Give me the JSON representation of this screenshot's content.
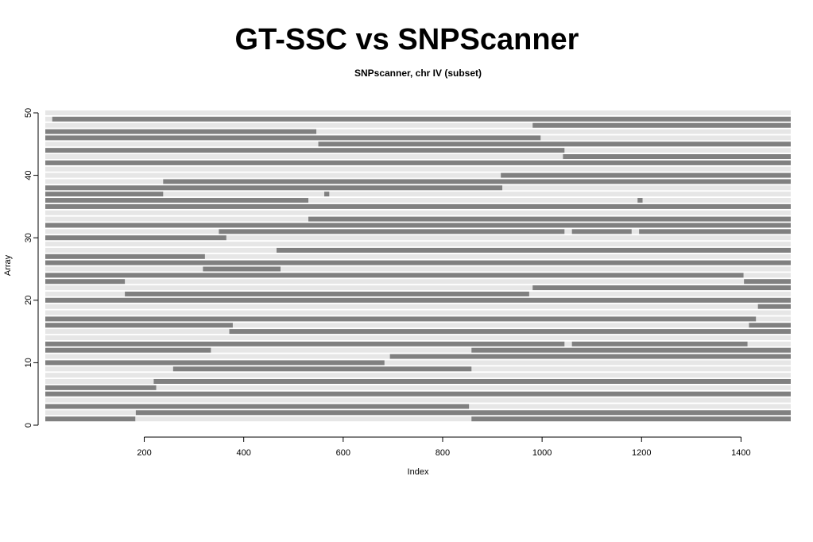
{
  "slide_title": "GT-SSC vs SNPScanner",
  "chart_data": {
    "type": "heatmap",
    "title": "SNPscanner, chr IV (subset)",
    "x_label": "Index",
    "y_label": "Array",
    "xlim": [
      1,
      1500
    ],
    "ylim": [
      0,
      50
    ],
    "xticks": [
      200,
      400,
      600,
      800,
      1000,
      1200,
      1400
    ],
    "yticks": [
      0,
      10,
      20,
      30,
      40,
      50
    ],
    "low_color": "#e6e6e6",
    "high_color": "#808080",
    "rows": [
      {
        "array": 1,
        "segments": [
          [
            1,
            182
          ],
          [
            858,
            1500
          ]
        ]
      },
      {
        "array": 2,
        "segments": [
          [
            183,
            1500
          ]
        ]
      },
      {
        "array": 3,
        "segments": [
          [
            1,
            853
          ]
        ]
      },
      {
        "array": 4,
        "segments": []
      },
      {
        "array": 5,
        "segments": [
          [
            1,
            1500
          ]
        ]
      },
      {
        "array": 6,
        "segments": [
          [
            1,
            224
          ]
        ]
      },
      {
        "array": 7,
        "segments": [
          [
            219,
            1500
          ]
        ]
      },
      {
        "array": 8,
        "segments": []
      },
      {
        "array": 9,
        "segments": [
          [
            258,
            858
          ]
        ]
      },
      {
        "array": 10,
        "segments": [
          [
            1,
            683
          ]
        ]
      },
      {
        "array": 11,
        "segments": [
          [
            694,
            1500
          ]
        ]
      },
      {
        "array": 12,
        "segments": [
          [
            1,
            334
          ],
          [
            858,
            1500
          ]
        ]
      },
      {
        "array": 13,
        "segments": [
          [
            1,
            1045
          ],
          [
            1060,
            1413
          ]
        ]
      },
      {
        "array": 14,
        "segments": []
      },
      {
        "array": 15,
        "segments": [
          [
            371,
            1500
          ]
        ]
      },
      {
        "array": 16,
        "segments": [
          [
            1,
            378
          ],
          [
            1416,
            1500
          ]
        ]
      },
      {
        "array": 17,
        "segments": [
          [
            1,
            1430
          ]
        ]
      },
      {
        "array": 18,
        "segments": []
      },
      {
        "array": 19,
        "segments": [
          [
            1434,
            1500
          ]
        ]
      },
      {
        "array": 20,
        "segments": [
          [
            1,
            1500
          ]
        ]
      },
      {
        "array": 21,
        "segments": [
          [
            161,
            974
          ]
        ]
      },
      {
        "array": 22,
        "segments": [
          [
            981,
            1500
          ]
        ]
      },
      {
        "array": 23,
        "segments": [
          [
            1,
            161
          ],
          [
            1406,
            1500
          ]
        ]
      },
      {
        "array": 24,
        "segments": [
          [
            1,
            1405
          ]
        ]
      },
      {
        "array": 25,
        "segments": [
          [
            318,
            474
          ]
        ]
      },
      {
        "array": 26,
        "segments": [
          [
            1,
            1500
          ]
        ]
      },
      {
        "array": 27,
        "segments": [
          [
            1,
            322
          ]
        ]
      },
      {
        "array": 28,
        "segments": [
          [
            466,
            1500
          ]
        ]
      },
      {
        "array": 29,
        "segments": []
      },
      {
        "array": 30,
        "segments": [
          [
            1,
            365
          ]
        ]
      },
      {
        "array": 31,
        "segments": [
          [
            350,
            1045
          ],
          [
            1060,
            1180
          ],
          [
            1195,
            1500
          ]
        ]
      },
      {
        "array": 32,
        "segments": [
          [
            1,
            1500
          ]
        ]
      },
      {
        "array": 33,
        "segments": [
          [
            530,
            1500
          ]
        ]
      },
      {
        "array": 34,
        "segments": []
      },
      {
        "array": 35,
        "segments": [
          [
            1,
            1500
          ]
        ]
      },
      {
        "array": 36,
        "segments": [
          [
            1,
            530
          ],
          [
            1192,
            1202
          ]
        ]
      },
      {
        "array": 37,
        "segments": [
          [
            1,
            238
          ],
          [
            562,
            572
          ]
        ]
      },
      {
        "array": 38,
        "segments": [
          [
            1,
            920
          ]
        ]
      },
      {
        "array": 39,
        "segments": [
          [
            238,
            1500
          ]
        ]
      },
      {
        "array": 40,
        "segments": [
          [
            917,
            1500
          ]
        ]
      },
      {
        "array": 41,
        "segments": []
      },
      {
        "array": 42,
        "segments": [
          [
            1,
            1500
          ]
        ]
      },
      {
        "array": 43,
        "segments": [
          [
            1042,
            1500
          ]
        ]
      },
      {
        "array": 44,
        "segments": [
          [
            1,
            1045
          ]
        ]
      },
      {
        "array": 45,
        "segments": [
          [
            550,
            1500
          ]
        ]
      },
      {
        "array": 46,
        "segments": [
          [
            1,
            997
          ]
        ]
      },
      {
        "array": 47,
        "segments": [
          [
            1,
            546
          ]
        ]
      },
      {
        "array": 48,
        "segments": [
          [
            981,
            1500
          ]
        ]
      },
      {
        "array": 49,
        "segments": [
          [
            15,
            1500
          ]
        ]
      },
      {
        "array": 50,
        "segments": []
      }
    ]
  }
}
